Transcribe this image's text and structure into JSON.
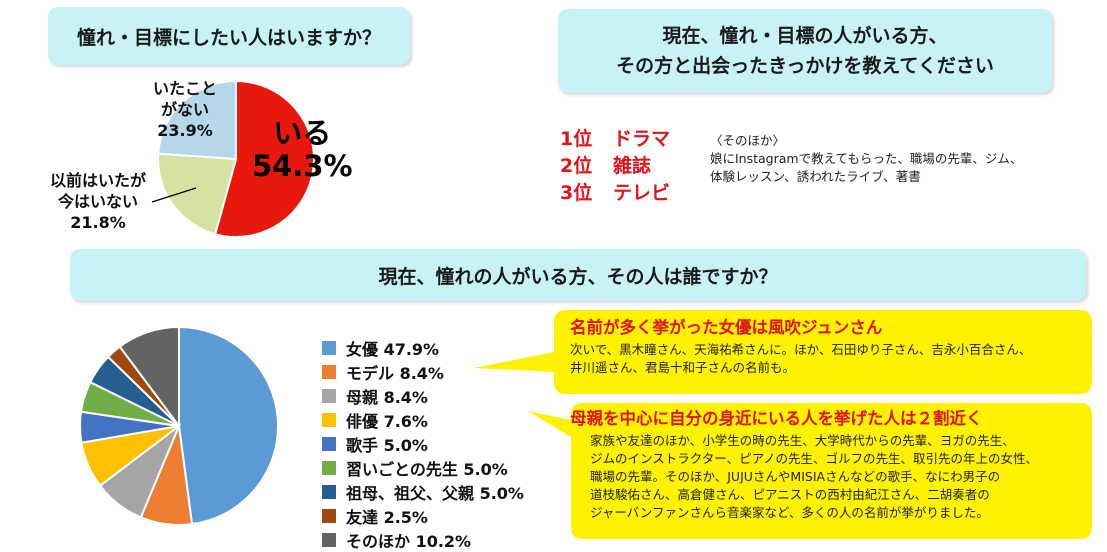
{
  "q1": "憧れ・目標にしたい人はいますか？",
  "q2_line1": "現在、憧れ・目標の人がいる方、",
  "q2_line2": "その方と出会ったきっかけを教えてください",
  "q3": "現在、憧れの人がいる方、その人は誰ですか？",
  "pie1": {
    "iru_label": "いる",
    "iru_pct": "54.3%",
    "never_line1": "いたこと",
    "never_line2": "がない",
    "never_pct": "23.9%",
    "former_line1": "以前はいたが",
    "former_line2": "今はいない",
    "former_pct": "21.8%"
  },
  "ranking": [
    {
      "pos": "1位",
      "name": "ドラマ"
    },
    {
      "pos": "2位",
      "name": "雑誌"
    },
    {
      "pos": "3位",
      "name": "テレビ"
    }
  ],
  "others": {
    "title": "〈そのほか〉",
    "line1": "娘にInstagramで教えてもらった、職場の先輩、ジム、",
    "line2": "体験レッスン、誘われたライブ、著書"
  },
  "legend": [
    {
      "text": "女優 47.9%"
    },
    {
      "text": "モデル 8.4%"
    },
    {
      "text": "母親 8.4%"
    },
    {
      "text": "俳優 7.6%"
    },
    {
      "text": "歌手 5.0%"
    },
    {
      "text": "習いごとの先生 5.0%"
    },
    {
      "text": "祖母、祖父、父親 5.0%"
    },
    {
      "text": "友達 2.5%"
    },
    {
      "text": "そのほか 10.2%"
    }
  ],
  "callout1": {
    "title": "名前が多く挙がった女優は風吹ジュンさん",
    "line1": "次いで、黒木瞳さん、天海祐希さんに。ほか、石田ゆり子さん、吉永小百合さん、",
    "line2": "井川遥さん、君島十和子さんの名前も。"
  },
  "callout2": {
    "title": "母親を中心に自分の身近にいる人を挙げた人は２割近く",
    "line1": "家族や友達のほか、小学生の時の先生、大学時代からの先輩、ヨガの先生、",
    "line2": "ジムのインストラクター、ピアノの先生、ゴルフの先生、取引先の年上の女性、",
    "line3": "職場の先輩。そのほか、JUJUさんやMISIAさんなどの歌手、なにわ男子の",
    "line4": "道枝駿佑さん、高倉健さん、ピアニストの西村由紀江さん、二胡奏者の",
    "line5": "ジャーバンファンさんら音楽家など、多くの人の名前が挙がりました。"
  },
  "colors": {
    "question_bg": "#c9f2f6",
    "callout_bg": "#fff200",
    "accent_red": "#e1121b"
  },
  "chart_data": [
    {
      "type": "pie",
      "categories": [
        "いる",
        "以前はいたが今はいない",
        "いたことがない"
      ],
      "values": [
        54.3,
        21.8,
        23.9
      ],
      "colors": [
        "#e8180c",
        "#d6e2a2",
        "#b6d6ea"
      ],
      "title": "憧れ・目標にしたい人はいますか？"
    },
    {
      "type": "pie",
      "categories": [
        "女優",
        "モデル",
        "母親",
        "俳優",
        "歌手",
        "習いごとの先生",
        "祖母、祖父、父親",
        "友達",
        "そのほか"
      ],
      "values": [
        47.9,
        8.4,
        8.4,
        7.6,
        5.0,
        5.0,
        5.0,
        2.5,
        10.2
      ],
      "colors": [
        "#5b9bd5",
        "#ed7d31",
        "#a5a5a5",
        "#ffc000",
        "#4472c4",
        "#70ad47",
        "#255e91",
        "#9e480e",
        "#636363"
      ],
      "title": "現在、憧れの人がいる方、その人は誰ですか？"
    }
  ]
}
